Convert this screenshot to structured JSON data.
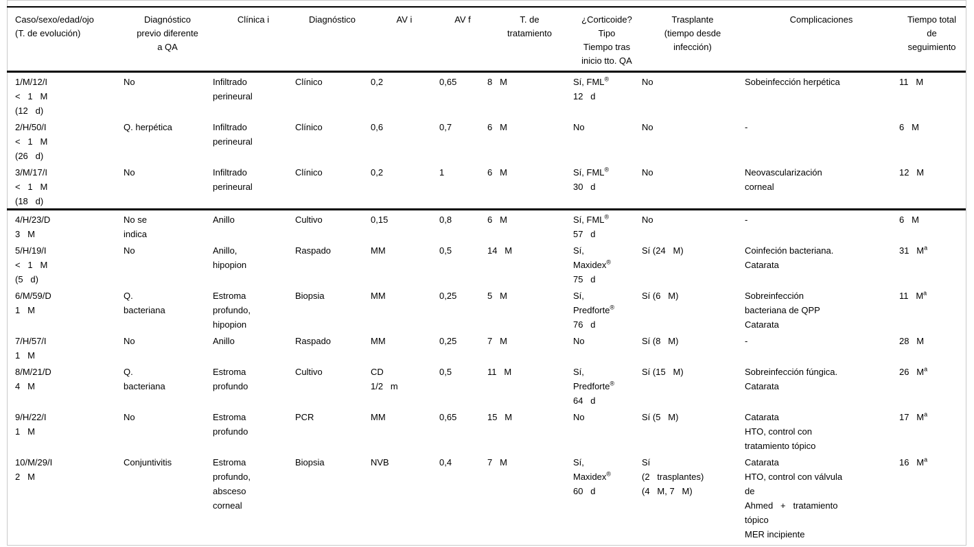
{
  "colors": {
    "text": "#000000",
    "rules": "#000000",
    "page_frame": "#c9c9c9",
    "background": "#ffffff"
  },
  "table": {
    "headers": [
      "Caso/sexo/edad/ojo\n(T. de evolución)",
      "Diagnóstico\nprevio diferente\na QA",
      "Clínica i",
      "Diagnóstico",
      "AV i",
      "AV f",
      "T. de\ntratamiento",
      "¿Corticoide?\nTipo\nTiempo tras\ninicio tto. QA",
      "Trasplante\n(tiempo desde\ninfección)",
      "Complicaciones",
      "Tiempo total\nde\nseguimiento"
    ],
    "rows": [
      [
        "1/M/12/I\n<   1   M\n(12   d)",
        "No",
        "Infiltrado\nperineural",
        "Clínico",
        "0,2",
        "0,65",
        "8   M",
        "Sí, FML^{®}\n12   d",
        "No",
        "Sobeinfección herpética",
        "11   M"
      ],
      [
        "2/H/50/I\n<   1   M\n(26   d)",
        "Q. herpética",
        "Infiltrado\nperineural",
        "Clínico",
        "0,6",
        "0,7",
        "6   M",
        "No",
        "No",
        "-",
        "6   M"
      ],
      [
        "3/M/17/I\n<   1   M\n(18   d)",
        "No",
        "Infiltrado\nperineural",
        "Clínico",
        "0,2",
        "1",
        "6   M",
        "Sí, FML^{®}\n30   d",
        "No",
        "Neovascularización\ncorneal",
        "12   M"
      ],
      [
        "4/H/23/D\n3   M",
        "No se\nindica",
        "Anillo",
        "Cultivo",
        "0,15",
        "0,8",
        "6   M",
        "Sí, FML^{®}\n57   d",
        "No",
        "-",
        "6   M"
      ],
      [
        "5/H/19/I\n<   1   M\n(5   d)",
        "No",
        "Anillo,\nhipopion",
        "Raspado",
        "MM",
        "0,5",
        "14   M",
        "Sí,\nMaxidex^{®}\n75   d",
        "Sí (24   M)",
        "Coinfeción bacteriana.\nCatarata",
        "31   M^{a}"
      ],
      [
        "6/M/59/D\n1   M",
        "Q.\nbacteriana",
        "Estroma\nprofundo,\nhipopion",
        "Biopsia",
        "MM",
        "0,25",
        "5   M",
        "Sí,\nPredforte^{®}\n76   d",
        "Sí (6   M)",
        "Sobreinfección\nbacteriana de QPP\nCatarata",
        "11   M^{a}"
      ],
      [
        "7/H/57/I\n1   M",
        "No",
        "Anillo",
        "Raspado",
        "MM",
        "0,25",
        "7   M",
        "No",
        "Sí (8   M)",
        "-",
        "28   M"
      ],
      [
        "8/M/21/D\n4   M",
        "Q.\nbacteriana",
        "Estroma\nprofundo",
        "Cultivo",
        "CD\n1/2   m",
        "0,5",
        "11   M",
        "Sí,\nPredforte^{®}\n64   d",
        "Sí (15   M)",
        "Sobreinfección fúngica.\nCatarata",
        "26   M^{a}"
      ],
      [
        "9/H/22/I\n1   M",
        "No",
        "Estroma\nprofundo",
        "PCR",
        "MM",
        "0,65",
        "15   M",
        "No",
        "Sí (5   M)",
        "Catarata\nHTO, control con\ntratamiento tópico",
        "17   M^{a}"
      ],
      [
        "10/M/29/I\n2   M",
        "Conjuntivitis",
        "Estroma\nprofundo,\nabsceso\ncorneal",
        "Biopsia",
        "NVB",
        "0,4",
        "7   M",
        "Sí,\nMaxidex^{®}\n60   d",
        "Sí\n(2   trasplantes)\n(4   M, 7   M)",
        "Catarata\nHTO, control con válvula\nde\nAhmed   +   tratamiento\ntópico\nMER incipiente",
        "16   M^{a}"
      ]
    ]
  }
}
